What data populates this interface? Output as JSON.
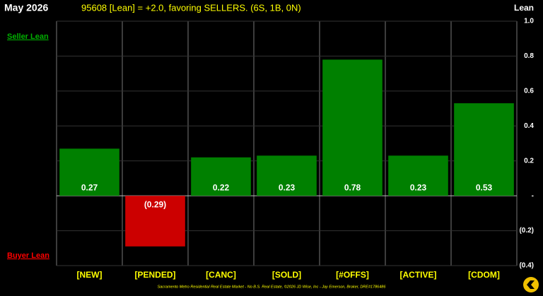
{
  "chart_data": {
    "type": "bar",
    "title": "May 2026",
    "subtitle": "95608 [Lean] = +2.0, favoring SELLERS. (6S, 1B, 0N)",
    "y_label": "Lean",
    "annotations": {
      "top": "Seller Lean",
      "bottom": "Buyer Lean"
    },
    "footer": "Sacramento Metro Residential Real Estate Market - No B.S. Real Estate, ©2026 JD Wise, Inc - Jay Emerson, Broker, DRE#1786486",
    "categories": [
      "[NEW]",
      "[PENDED]",
      "[CANC]",
      "[SOLD]",
      "[#OFFS]",
      "[ACTIVE]",
      "[CDOM]"
    ],
    "values": [
      0.27,
      -0.29,
      0.22,
      0.23,
      0.78,
      0.23,
      0.53
    ],
    "value_labels": [
      "0.27",
      "(0.29)",
      "0.22",
      "0.23",
      "0.78",
      "0.23",
      "0.53"
    ],
    "colors": [
      "#008000",
      "#cc0000",
      "#008000",
      "#008000",
      "#008000",
      "#008000",
      "#008000"
    ],
    "ylim": [
      -0.4,
      1.0
    ],
    "yticks": [
      {
        "value": 1.0,
        "label": "1.0"
      },
      0.8,
      0.6,
      0.4,
      0.2,
      {
        "value": 0,
        "label": "-"
      },
      {
        "value": -0.2,
        "label": "(0.2)"
      },
      {
        "value": -0.4,
        "label": "(0.4)"
      }
    ],
    "y_axis_side": "right",
    "grid": true
  }
}
